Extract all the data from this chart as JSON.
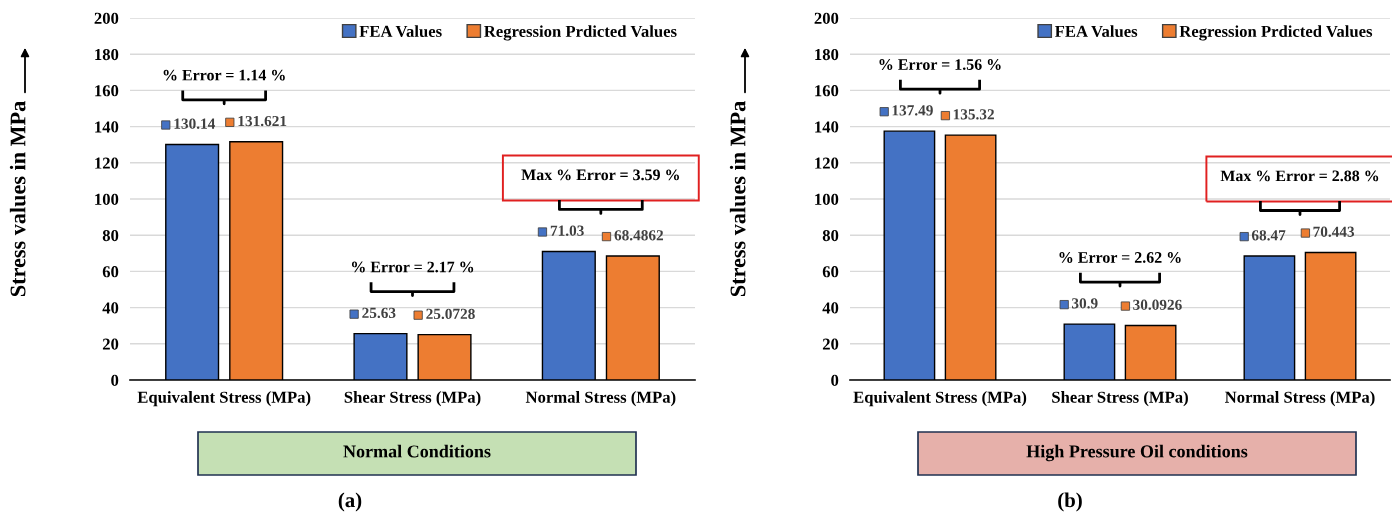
{
  "chart_data": [
    {
      "type": "bar",
      "categories": [
        "Equivalent Stress (MPa)",
        "Shear Stress (MPa)",
        "Normal Stress (MPa)"
      ],
      "series": [
        {
          "name": "FEA Values",
          "color": "#4472c4",
          "values": [
            130.14,
            25.63,
            71.03
          ]
        },
        {
          "name": "Regression Prdicted Values",
          "color": "#ed7d31",
          "values": [
            131.621,
            25.0728,
            68.4862
          ]
        }
      ],
      "ylabel": "Stress values in MPa",
      "ylim": [
        0,
        200
      ],
      "yticks": [
        0,
        20,
        40,
        60,
        80,
        100,
        120,
        140,
        160,
        180,
        200
      ],
      "grid": "y",
      "legend": "top right",
      "data_labels": true,
      "annotations": [
        "% Error = 1.14 %",
        "% Error = 2.17 %",
        "Max % Error = 3.59 %",
        "Normal Conditions",
        "(a)"
      ]
    },
    {
      "type": "bar",
      "categories": [
        "Equivalent Stress (MPa)",
        "Shear Stress (MPa)",
        "Normal Stress (MPa)"
      ],
      "series": [
        {
          "name": "FEA Values",
          "color": "#4472c4",
          "values": [
            137.49,
            30.9,
            68.47
          ]
        },
        {
          "name": "Regression Prdicted Values",
          "color": "#ed7d31",
          "values": [
            135.32,
            30.0926,
            70.443
          ]
        }
      ],
      "ylabel": "Stress values in MPa",
      "ylim": [
        0,
        200
      ],
      "yticks": [
        0,
        20,
        40,
        60,
        80,
        100,
        120,
        140,
        160,
        180,
        200
      ],
      "grid": "y",
      "legend": "top right",
      "data_labels": true,
      "annotations": [
        "% Error = 1.56 %",
        "% Error = 2.62 %",
        "Max % Error = 2.88 %",
        "High Pressure Oil conditions",
        "(b)"
      ]
    }
  ]
}
